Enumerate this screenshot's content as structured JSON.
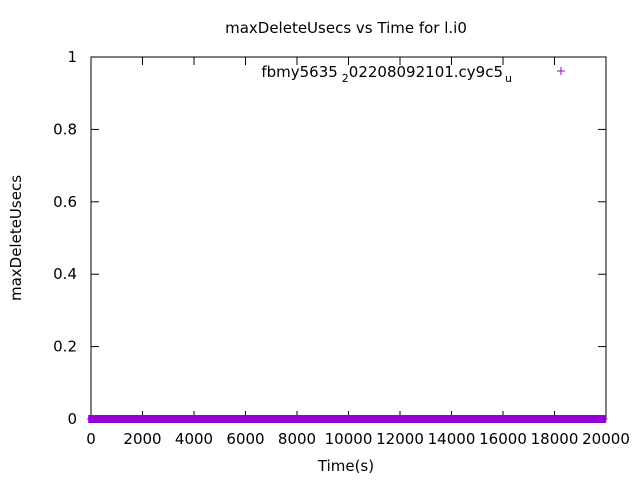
{
  "chart_data": {
    "type": "scatter",
    "title": "maxDeleteUsecs vs Time for l.i0",
    "xlabel": "Time(s)",
    "ylabel": "maxDeleteUsecs",
    "xlim": [
      0,
      20000
    ],
    "ylim": [
      0,
      1
    ],
    "x_ticks": [
      0,
      2000,
      4000,
      6000,
      8000,
      10000,
      12000,
      14000,
      16000,
      18000,
      20000
    ],
    "x_tick_labels": [
      "0",
      "2000",
      "4000",
      "6000",
      "8000",
      "10000",
      "12000",
      "14000",
      "16000",
      "18000",
      "20000"
    ],
    "y_ticks": [
      0,
      0.2,
      0.4,
      0.6,
      0.8,
      1
    ],
    "y_tick_labels": [
      "0",
      "0.2",
      "0.4",
      "0.6",
      "0.8",
      "1"
    ],
    "grid": false,
    "legend_position": "top-right",
    "marker": "+",
    "series_color": "#9400d3",
    "legend": {
      "main": "fbmy5635",
      "sub1": "2",
      "mid": "02208092101.cy9c5",
      "sub2": "u"
    },
    "series": [
      {
        "x_start": 0,
        "x_end": 19900,
        "x_step": 100,
        "y": 0
      }
    ]
  }
}
